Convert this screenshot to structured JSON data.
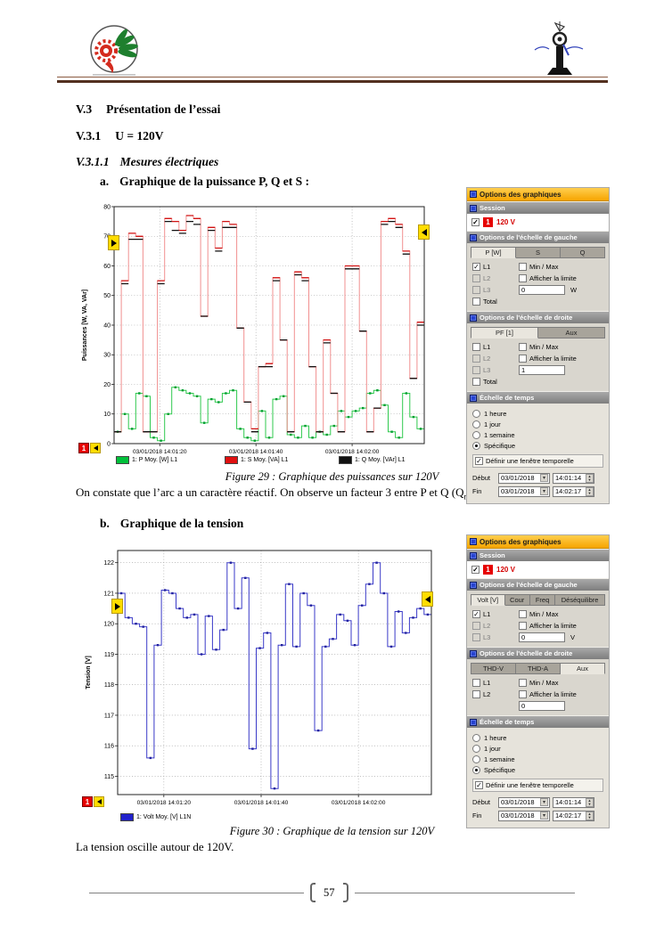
{
  "document": {
    "headings": {
      "s1_num": "V.3",
      "s1_title": "Présentation de l’essai",
      "s2_num": "V.3.1",
      "s2_title": "U = 120V",
      "s3_num": "V.3.1.1",
      "s3_title": "Mesures électriques",
      "item_a_num": "a.",
      "item_a_title": "Graphique de la puissance P, Q  et S :",
      "item_b_num": "b.",
      "item_b_title": "Graphique de la tension"
    },
    "captions": {
      "fig29": "Figure 29 : Graphique des puissances sur 120V",
      "fig30": "Figure 30 : Graphique de la tension sur 120V"
    },
    "paragraphs": {
      "p29_part1": "On constate que l’arc a un caractère réactif. On observe un facteur 3 entre P et Q (Q",
      "p29_sub1": "moy",
      "p29_part2": " = 3P",
      "p29_sub2": "moy",
      "p29_part3": ")",
      "p30": "La tension oscille autour de 120V."
    },
    "page_number": "57"
  },
  "icons": {
    "check": "✓",
    "dropdown": "▾",
    "up": "▲",
    "down": "▼"
  },
  "colors": {
    "panel_title_orange": "#F6A500",
    "section_bar_gray": "#8A8A8A",
    "session_red": "#E60000",
    "cursor_yellow": "#FFDD00",
    "chart_green": "#00C13B",
    "chart_red": "#D11414",
    "chart_black": "#111111",
    "chart_blue": "#3A3AC8",
    "header_rule_brown": "#53301f"
  },
  "panel1": {
    "title": "Options des graphiques",
    "session_label": "Session",
    "session_number": "1",
    "session_value": "120 V",
    "left_scale_label": "Options de l'échelle de gauche",
    "left_tabs": [
      "P [W]",
      "S",
      "Q"
    ],
    "channels": [
      "L1",
      "L2",
      "L3",
      "Total"
    ],
    "min_max_label": "Min / Max",
    "limit_label": "Afficher la limite",
    "limit_value": "0",
    "unit": "W",
    "right_scale_label": "Options de l'échelle de droite",
    "right_tabs": [
      "PF [1]",
      "Aux"
    ],
    "right_channels": [
      "L1",
      "L2",
      "L3",
      "Total"
    ],
    "right_min_max_label": "Min / Max",
    "right_limit_label": "Afficher la limite",
    "right_limit_value": "1",
    "right_unit": "",
    "time_label": "Échelle de temps",
    "time_options": [
      "1 heure",
      "1 jour",
      "1 semaine",
      "Spécifique"
    ],
    "selected_time_option": "Spécifique",
    "window_label": "Définir une fenêtre temporelle",
    "start_label": "Début",
    "end_label": "Fin",
    "start_date": "03/01/2018",
    "start_time": "14:01:14",
    "end_date": "03/01/2018",
    "end_time": "14:02:17"
  },
  "panel2": {
    "title": "Options des graphiques",
    "session_label": "Session",
    "session_number": "1",
    "session_value": "120 V",
    "left_scale_label": "Options de l'échelle de gauche",
    "left_tabs": [
      "Volt [V]",
      "Cour",
      "Freq",
      "Déséquilibre"
    ],
    "channels": [
      "L1",
      "L2",
      "L3"
    ],
    "min_max_label": "Min / Max",
    "limit_label": "Afficher la limite",
    "limit_value": "0",
    "unit": "V",
    "right_scale_label": "Options de l'échelle de droite",
    "right_tabs": [
      "THD-V",
      "THD-A",
      "Aux"
    ],
    "right_channels": [
      "L1",
      "L2"
    ],
    "right_min_max_label": "Min / Max",
    "right_limit_label": "Afficher la limite",
    "right_limit_value": "0",
    "right_unit": "",
    "time_label": "Échelle de temps",
    "time_options": [
      "1 heure",
      "1 jour",
      "1 semaine",
      "Spécifique"
    ],
    "selected_time_option": "Spécifique",
    "window_label": "Définir une fenêtre temporelle",
    "start_label": "Début",
    "end_label": "Fin",
    "start_date": "03/01/2018",
    "start_time": "14:01:14",
    "end_date": "03/01/2018",
    "end_time": "14:02:17"
  },
  "chart_data": [
    {
      "type": "line",
      "step": true,
      "title": "",
      "xlabel": "",
      "ylabel": "Puissances [W, VA, VAr]",
      "ylim": [
        0,
        80
      ],
      "yticks": [
        0,
        10,
        20,
        30,
        40,
        50,
        60,
        70,
        80
      ],
      "xlim": [
        0,
        64.5
      ],
      "xticks": [
        9.5,
        29.5,
        49.5
      ],
      "xtick_labels": [
        "03/01/2018 14:01:20",
        "03/01/2018 14:01:40",
        "03/01/2018 14:02:00"
      ],
      "grid": true,
      "legend_position": "bottom",
      "margins": {
        "l": 40,
        "r": 12,
        "t": 12,
        "b": 14
      },
      "legend": [
        {
          "label": "1: P Moy. [W] L1",
          "color": "#00C13B"
        },
        {
          "label": "1: S Moy. [VA] L1",
          "color": "#E01010"
        },
        {
          "label": "1: Q Moy. [VAr] L1",
          "color": "#111111"
        }
      ],
      "series": [
        {
          "name": "P Moy. [W] L1",
          "color": "#2FC94E",
          "marker_color": "#009E2F",
          "markers": true,
          "points": [
            [
              0,
              4
            ],
            [
              1.5,
              10
            ],
            [
              3,
              5
            ],
            [
              4.5,
              17
            ],
            [
              6,
              16
            ],
            [
              7.5,
              2
            ],
            [
              9,
              1
            ],
            [
              10.5,
              10
            ],
            [
              12,
              19
            ],
            [
              13.5,
              18
            ],
            [
              15,
              17
            ],
            [
              16.5,
              16
            ],
            [
              18,
              7
            ],
            [
              19.5,
              15
            ],
            [
              21,
              14
            ],
            [
              22.5,
              17
            ],
            [
              24,
              18
            ],
            [
              25.5,
              5
            ],
            [
              27,
              2
            ],
            [
              28.5,
              1
            ],
            [
              30,
              11
            ],
            [
              31.5,
              2
            ],
            [
              33,
              15
            ],
            [
              34.5,
              16
            ],
            [
              36,
              3
            ],
            [
              37.5,
              2
            ],
            [
              39,
              6
            ],
            [
              40.5,
              2
            ],
            [
              42,
              4
            ],
            [
              43.5,
              3
            ],
            [
              45,
              6
            ],
            [
              46.5,
              11
            ],
            [
              48,
              9
            ],
            [
              49.5,
              11
            ],
            [
              51,
              12
            ],
            [
              52.5,
              17
            ],
            [
              54,
              18
            ],
            [
              55.5,
              13
            ],
            [
              57,
              4
            ],
            [
              58.5,
              2
            ],
            [
              60,
              17
            ],
            [
              61.5,
              9
            ],
            [
              63,
              5
            ],
            [
              64.5,
              35
            ]
          ]
        },
        {
          "name": "S Moy. [VA] L1",
          "color": "#F19090",
          "caps_color": "#D11414",
          "points": [
            [
              0,
              4
            ],
            [
              1.5,
              55
            ],
            [
              3,
              71
            ],
            [
              4.5,
              70
            ],
            [
              6,
              4
            ],
            [
              7.5,
              4
            ],
            [
              9,
              55
            ],
            [
              10.5,
              76
            ],
            [
              12,
              75
            ],
            [
              13.5,
              72
            ],
            [
              15,
              77
            ],
            [
              16.5,
              76
            ],
            [
              18,
              43
            ],
            [
              19.5,
              73
            ],
            [
              21,
              66
            ],
            [
              22.5,
              75
            ],
            [
              24,
              74
            ],
            [
              25.5,
              39
            ],
            [
              27,
              14
            ],
            [
              28.5,
              5
            ],
            [
              30,
              26
            ],
            [
              31.5,
              27
            ],
            [
              33,
              56
            ],
            [
              34.5,
              35
            ],
            [
              36,
              4
            ],
            [
              37.5,
              58
            ],
            [
              39,
              56
            ],
            [
              40.5,
              26
            ],
            [
              42,
              4
            ],
            [
              43.5,
              35
            ],
            [
              45,
              17
            ],
            [
              46.5,
              4
            ],
            [
              48,
              60
            ],
            [
              49.5,
              60
            ],
            [
              51,
              38
            ],
            [
              52.5,
              4
            ],
            [
              54,
              12
            ],
            [
              55.5,
              75
            ],
            [
              57,
              76
            ],
            [
              58.5,
              74
            ],
            [
              60,
              65
            ],
            [
              61.5,
              22
            ],
            [
              63,
              41
            ],
            [
              64.5,
              66
            ]
          ]
        },
        {
          "name": "Q Moy. [VAr] L1",
          "color": "#111111",
          "style": "caps",
          "points": [
            [
              0,
              4
            ],
            [
              1.5,
              54
            ],
            [
              3,
              69
            ],
            [
              4.5,
              69
            ],
            [
              6,
              4
            ],
            [
              7.5,
              4
            ],
            [
              9,
              54
            ],
            [
              10.5,
              75
            ],
            [
              12,
              72
            ],
            [
              13.5,
              71
            ],
            [
              15,
              75
            ],
            [
              16.5,
              74
            ],
            [
              18,
              43
            ],
            [
              19.5,
              72
            ],
            [
              21,
              65
            ],
            [
              22.5,
              73
            ],
            [
              24,
              73
            ],
            [
              25.5,
              39
            ],
            [
              27,
              14
            ],
            [
              28.5,
              4
            ],
            [
              30,
              26
            ],
            [
              31.5,
              26
            ],
            [
              33,
              55
            ],
            [
              34.5,
              35
            ],
            [
              36,
              4
            ],
            [
              37.5,
              57
            ],
            [
              39,
              55
            ],
            [
              40.5,
              26
            ],
            [
              42,
              4
            ],
            [
              43.5,
              34
            ],
            [
              45,
              17
            ],
            [
              46.5,
              4
            ],
            [
              48,
              59
            ],
            [
              49.5,
              59
            ],
            [
              51,
              38
            ],
            [
              52.5,
              4
            ],
            [
              54,
              12
            ],
            [
              55.5,
              74
            ],
            [
              57,
              75
            ],
            [
              58.5,
              73
            ],
            [
              60,
              64
            ],
            [
              61.5,
              22
            ],
            [
              63,
              40
            ],
            [
              64.5,
              65
            ]
          ]
        }
      ]
    },
    {
      "type": "line",
      "step": true,
      "title": "",
      "xlabel": "",
      "ylabel": "Tension [V]",
      "ylim": [
        114.4,
        122.4
      ],
      "yticks": [
        115,
        116,
        117,
        118,
        119,
        120,
        121,
        122
      ],
      "xlim": [
        0,
        64.5
      ],
      "xticks": [
        9.5,
        29.5,
        49.5
      ],
      "xtick_labels": [
        "03/01/2018 14:01:20",
        "03/01/2018 14:01:40",
        "03/01/2018 14:02:00"
      ],
      "grid": true,
      "legend_position": "bottom",
      "margins": {
        "l": 40,
        "r": 10,
        "t": 12,
        "b": 14
      },
      "legend": [
        {
          "label": "1: Volt Moy. [V] L1N",
          "color": "#2222CC"
        }
      ],
      "series": [
        {
          "name": "Volt Moy. [V] L1N",
          "color": "#3A3AC8",
          "marker_color": "#22229E",
          "markers": true,
          "points": [
            [
              0,
              121.0
            ],
            [
              1.5,
              120.2
            ],
            [
              3,
              120.0
            ],
            [
              4.5,
              119.9
            ],
            [
              6,
              115.6
            ],
            [
              7.5,
              119.3
            ],
            [
              9,
              121.1
            ],
            [
              10.5,
              121.0
            ],
            [
              12,
              120.5
            ],
            [
              13.5,
              120.2
            ],
            [
              15,
              120.3
            ],
            [
              16.5,
              119.0
            ],
            [
              18,
              120.25
            ],
            [
              19.5,
              119.15
            ],
            [
              21,
              119.8
            ],
            [
              22.5,
              122.0
            ],
            [
              24,
              120.5
            ],
            [
              25.5,
              121.5
            ],
            [
              27,
              115.9
            ],
            [
              28.5,
              119.2
            ],
            [
              30,
              119.7
            ],
            [
              31.5,
              114.6
            ],
            [
              33,
              119.3
            ],
            [
              34.5,
              121.3
            ],
            [
              36,
              119.25
            ],
            [
              37.5,
              121.0
            ],
            [
              39,
              120.6
            ],
            [
              40.5,
              116.5
            ],
            [
              42,
              119.25
            ],
            [
              43.5,
              119.5
            ],
            [
              45,
              120.3
            ],
            [
              46.5,
              120.1
            ],
            [
              48,
              119.3
            ],
            [
              49.5,
              120.6
            ],
            [
              51,
              121.3
            ],
            [
              52.5,
              122.0
            ],
            [
              54,
              121.0
            ],
            [
              55.5,
              119.25
            ],
            [
              57,
              120.4
            ],
            [
              58.5,
              119.7
            ],
            [
              60,
              120.2
            ],
            [
              61.5,
              120.5
            ],
            [
              63,
              120.3
            ],
            [
              64.5,
              120.3
            ]
          ]
        }
      ]
    }
  ]
}
